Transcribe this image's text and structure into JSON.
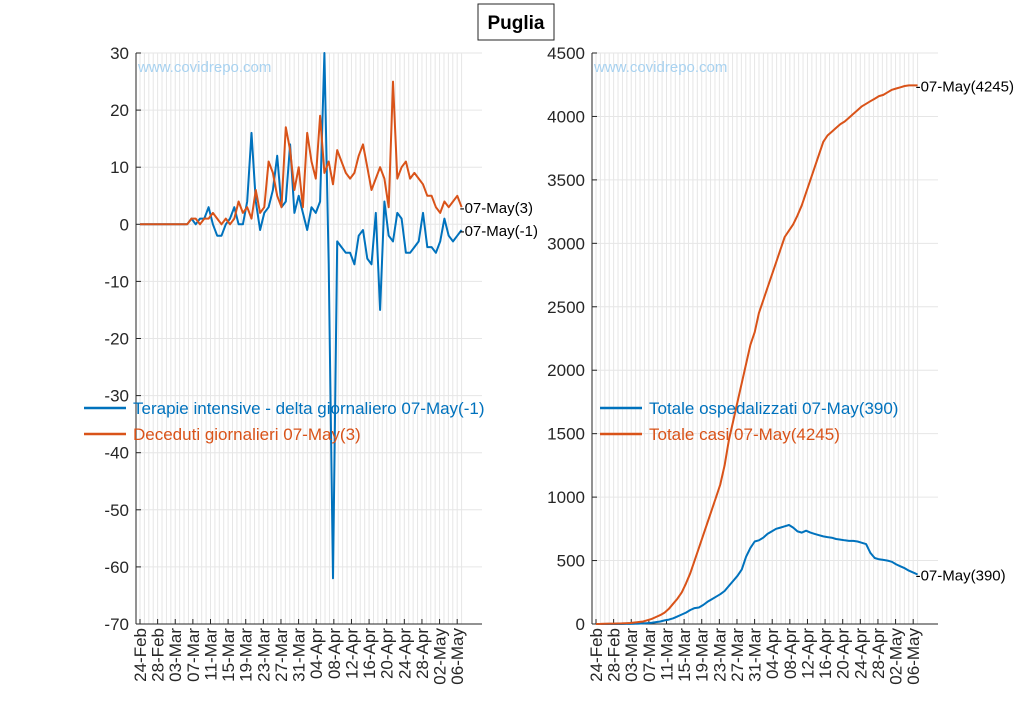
{
  "title": "Puglia",
  "watermark": "www.covidrepo.com",
  "colors": {
    "blue": "#0072BD",
    "orange": "#D95319",
    "grid": "#e6e6e6",
    "axis": "#262626"
  },
  "chart_data": [
    {
      "type": "line",
      "ylim": [
        -70,
        30
      ],
      "yticks": [
        30,
        20,
        10,
        0,
        -10,
        -20,
        -30,
        -40,
        -50,
        -60,
        -70
      ],
      "x_range": [
        "2020-02-24",
        "2020-05-07"
      ],
      "xticks": [
        "24-Feb",
        "28-Feb",
        "03-Mar",
        "07-Mar",
        "11-Mar",
        "15-Mar",
        "19-Mar",
        "23-Mar",
        "27-Mar",
        "31-Mar",
        "04-Apr",
        "08-Apr",
        "12-Apr",
        "16-Apr",
        "20-Apr",
        "24-Apr",
        "28-Apr",
        "02-May",
        "06-May"
      ],
      "grid": true,
      "legend_position": "left-middle",
      "series": [
        {
          "name": "Terapie intensive - delta giornaliero 07-May(-1)",
          "end_label": "-07-May(-1)",
          "color": "#0072BD",
          "values": [
            0,
            0,
            0,
            0,
            0,
            0,
            0,
            0,
            0,
            0,
            0,
            0,
            1,
            0,
            1,
            1,
            3,
            0,
            -2,
            -2,
            0,
            1,
            3,
            0,
            0,
            4,
            16,
            4,
            -1,
            2,
            3,
            6,
            12,
            3,
            4,
            14,
            2,
            5,
            2,
            -1,
            3,
            2,
            4,
            30,
            -7,
            -62,
            -3,
            -4,
            -5,
            -5,
            -7,
            -2,
            -1,
            -6,
            -7,
            2,
            -15,
            4,
            -2,
            -3,
            2,
            1,
            -5,
            -5,
            -4,
            -3,
            2,
            -4,
            -4,
            -5,
            -3,
            1,
            -2,
            -3,
            -2,
            -1
          ]
        },
        {
          "name": "Deceduti giornalieri 07-May(3)",
          "end_label": "-07-May(3)",
          "color": "#D95319",
          "values": [
            0,
            0,
            0,
            0,
            0,
            0,
            0,
            0,
            0,
            0,
            0,
            0,
            1,
            1,
            0,
            1,
            1,
            2,
            1,
            0,
            1,
            0,
            1,
            4,
            2,
            3,
            1,
            6,
            2,
            3,
            11,
            9,
            5,
            3,
            17,
            13,
            6,
            10,
            3,
            16,
            11,
            8,
            19,
            9,
            11,
            7,
            13,
            11,
            9,
            8,
            9,
            12,
            14,
            10,
            6,
            8,
            10,
            8,
            3,
            25,
            8,
            10,
            11,
            8,
            9,
            8,
            7,
            5,
            5,
            3,
            2,
            4,
            3,
            4,
            5,
            3
          ]
        }
      ]
    },
    {
      "type": "line",
      "ylim": [
        0,
        4500
      ],
      "yticks": [
        4500,
        4000,
        3500,
        3000,
        2500,
        2000,
        1500,
        1000,
        500,
        0
      ],
      "x_range": [
        "2020-02-24",
        "2020-05-07"
      ],
      "xticks": [
        "24-Feb",
        "28-Feb",
        "03-Mar",
        "07-Mar",
        "11-Mar",
        "15-Mar",
        "19-Mar",
        "23-Mar",
        "27-Mar",
        "31-Mar",
        "04-Apr",
        "08-Apr",
        "12-Apr",
        "16-Apr",
        "20-Apr",
        "24-Apr",
        "28-Apr",
        "02-May",
        "06-May"
      ],
      "grid": true,
      "legend_position": "left-middle",
      "series": [
        {
          "name": "Totale ospedalizzati 07-May(390)",
          "end_label": "-07-May(390)",
          "color": "#0072BD",
          "values": [
            0,
            0,
            0,
            0,
            0,
            0,
            0,
            1,
            1,
            2,
            3,
            5,
            7,
            10,
            15,
            20,
            28,
            35,
            45,
            60,
            75,
            90,
            110,
            125,
            130,
            150,
            175,
            195,
            215,
            235,
            260,
            300,
            340,
            380,
            430,
            530,
            600,
            650,
            660,
            680,
            710,
            730,
            750,
            760,
            770,
            780,
            760,
            730,
            720,
            735,
            720,
            710,
            700,
            690,
            685,
            680,
            670,
            665,
            660,
            655,
            655,
            650,
            640,
            630,
            560,
            520,
            510,
            505,
            500,
            490,
            470,
            455,
            440,
            420,
            405,
            390
          ]
        },
        {
          "name": "Totale casi 07-May(4245)",
          "end_label": "-07-May(4245)",
          "color": "#D95319",
          "values": [
            0,
            1,
            2,
            3,
            3,
            4,
            5,
            6,
            8,
            12,
            16,
            20,
            30,
            40,
            55,
            70,
            90,
            120,
            160,
            200,
            250,
            320,
            400,
            500,
            600,
            700,
            800,
            900,
            1000,
            1100,
            1250,
            1450,
            1600,
            1750,
            1900,
            2050,
            2200,
            2300,
            2450,
            2550,
            2650,
            2750,
            2850,
            2950,
            3050,
            3100,
            3150,
            3220,
            3300,
            3400,
            3500,
            3600,
            3700,
            3800,
            3850,
            3880,
            3910,
            3940,
            3960,
            3990,
            4020,
            4050,
            4080,
            4100,
            4120,
            4140,
            4160,
            4170,
            4190,
            4210,
            4220,
            4230,
            4240,
            4245,
            4245,
            4245
          ]
        }
      ]
    }
  ]
}
